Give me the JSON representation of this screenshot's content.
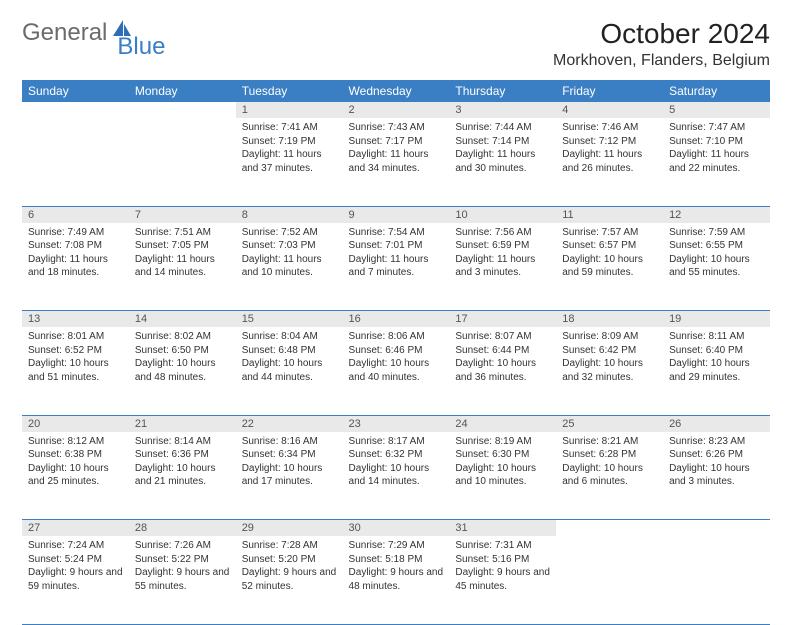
{
  "brand": {
    "general": "General",
    "blue": "Blue"
  },
  "title": "October 2024",
  "location": "Morkhoven, Flanders, Belgium",
  "colors": {
    "accent": "#3a7fc4",
    "day_bg": "#e9e9e9",
    "text": "#333333",
    "bg": "#ffffff"
  },
  "day_headers": [
    "Sunday",
    "Monday",
    "Tuesday",
    "Wednesday",
    "Thursday",
    "Friday",
    "Saturday"
  ],
  "weeks": [
    [
      null,
      null,
      {
        "n": "1",
        "sr": "Sunrise: 7:41 AM",
        "ss": "Sunset: 7:19 PM",
        "dl": "Daylight: 11 hours and 37 minutes."
      },
      {
        "n": "2",
        "sr": "Sunrise: 7:43 AM",
        "ss": "Sunset: 7:17 PM",
        "dl": "Daylight: 11 hours and 34 minutes."
      },
      {
        "n": "3",
        "sr": "Sunrise: 7:44 AM",
        "ss": "Sunset: 7:14 PM",
        "dl": "Daylight: 11 hours and 30 minutes."
      },
      {
        "n": "4",
        "sr": "Sunrise: 7:46 AM",
        "ss": "Sunset: 7:12 PM",
        "dl": "Daylight: 11 hours and 26 minutes."
      },
      {
        "n": "5",
        "sr": "Sunrise: 7:47 AM",
        "ss": "Sunset: 7:10 PM",
        "dl": "Daylight: 11 hours and 22 minutes."
      }
    ],
    [
      {
        "n": "6",
        "sr": "Sunrise: 7:49 AM",
        "ss": "Sunset: 7:08 PM",
        "dl": "Daylight: 11 hours and 18 minutes."
      },
      {
        "n": "7",
        "sr": "Sunrise: 7:51 AM",
        "ss": "Sunset: 7:05 PM",
        "dl": "Daylight: 11 hours and 14 minutes."
      },
      {
        "n": "8",
        "sr": "Sunrise: 7:52 AM",
        "ss": "Sunset: 7:03 PM",
        "dl": "Daylight: 11 hours and 10 minutes."
      },
      {
        "n": "9",
        "sr": "Sunrise: 7:54 AM",
        "ss": "Sunset: 7:01 PM",
        "dl": "Daylight: 11 hours and 7 minutes."
      },
      {
        "n": "10",
        "sr": "Sunrise: 7:56 AM",
        "ss": "Sunset: 6:59 PM",
        "dl": "Daylight: 11 hours and 3 minutes."
      },
      {
        "n": "11",
        "sr": "Sunrise: 7:57 AM",
        "ss": "Sunset: 6:57 PM",
        "dl": "Daylight: 10 hours and 59 minutes."
      },
      {
        "n": "12",
        "sr": "Sunrise: 7:59 AM",
        "ss": "Sunset: 6:55 PM",
        "dl": "Daylight: 10 hours and 55 minutes."
      }
    ],
    [
      {
        "n": "13",
        "sr": "Sunrise: 8:01 AM",
        "ss": "Sunset: 6:52 PM",
        "dl": "Daylight: 10 hours and 51 minutes."
      },
      {
        "n": "14",
        "sr": "Sunrise: 8:02 AM",
        "ss": "Sunset: 6:50 PM",
        "dl": "Daylight: 10 hours and 48 minutes."
      },
      {
        "n": "15",
        "sr": "Sunrise: 8:04 AM",
        "ss": "Sunset: 6:48 PM",
        "dl": "Daylight: 10 hours and 44 minutes."
      },
      {
        "n": "16",
        "sr": "Sunrise: 8:06 AM",
        "ss": "Sunset: 6:46 PM",
        "dl": "Daylight: 10 hours and 40 minutes."
      },
      {
        "n": "17",
        "sr": "Sunrise: 8:07 AM",
        "ss": "Sunset: 6:44 PM",
        "dl": "Daylight: 10 hours and 36 minutes."
      },
      {
        "n": "18",
        "sr": "Sunrise: 8:09 AM",
        "ss": "Sunset: 6:42 PM",
        "dl": "Daylight: 10 hours and 32 minutes."
      },
      {
        "n": "19",
        "sr": "Sunrise: 8:11 AM",
        "ss": "Sunset: 6:40 PM",
        "dl": "Daylight: 10 hours and 29 minutes."
      }
    ],
    [
      {
        "n": "20",
        "sr": "Sunrise: 8:12 AM",
        "ss": "Sunset: 6:38 PM",
        "dl": "Daylight: 10 hours and 25 minutes."
      },
      {
        "n": "21",
        "sr": "Sunrise: 8:14 AM",
        "ss": "Sunset: 6:36 PM",
        "dl": "Daylight: 10 hours and 21 minutes."
      },
      {
        "n": "22",
        "sr": "Sunrise: 8:16 AM",
        "ss": "Sunset: 6:34 PM",
        "dl": "Daylight: 10 hours and 17 minutes."
      },
      {
        "n": "23",
        "sr": "Sunrise: 8:17 AM",
        "ss": "Sunset: 6:32 PM",
        "dl": "Daylight: 10 hours and 14 minutes."
      },
      {
        "n": "24",
        "sr": "Sunrise: 8:19 AM",
        "ss": "Sunset: 6:30 PM",
        "dl": "Daylight: 10 hours and 10 minutes."
      },
      {
        "n": "25",
        "sr": "Sunrise: 8:21 AM",
        "ss": "Sunset: 6:28 PM",
        "dl": "Daylight: 10 hours and 6 minutes."
      },
      {
        "n": "26",
        "sr": "Sunrise: 8:23 AM",
        "ss": "Sunset: 6:26 PM",
        "dl": "Daylight: 10 hours and 3 minutes."
      }
    ],
    [
      {
        "n": "27",
        "sr": "Sunrise: 7:24 AM",
        "ss": "Sunset: 5:24 PM",
        "dl": "Daylight: 9 hours and 59 minutes."
      },
      {
        "n": "28",
        "sr": "Sunrise: 7:26 AM",
        "ss": "Sunset: 5:22 PM",
        "dl": "Daylight: 9 hours and 55 minutes."
      },
      {
        "n": "29",
        "sr": "Sunrise: 7:28 AM",
        "ss": "Sunset: 5:20 PM",
        "dl": "Daylight: 9 hours and 52 minutes."
      },
      {
        "n": "30",
        "sr": "Sunrise: 7:29 AM",
        "ss": "Sunset: 5:18 PM",
        "dl": "Daylight: 9 hours and 48 minutes."
      },
      {
        "n": "31",
        "sr": "Sunrise: 7:31 AM",
        "ss": "Sunset: 5:16 PM",
        "dl": "Daylight: 9 hours and 45 minutes."
      },
      null,
      null
    ]
  ]
}
